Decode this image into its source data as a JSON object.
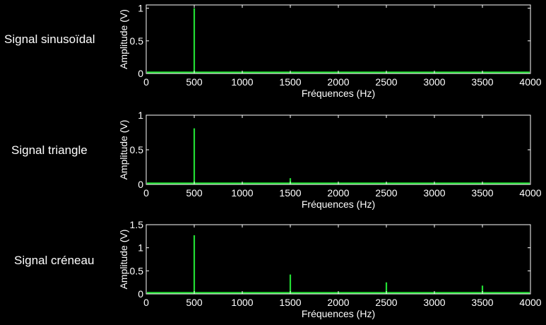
{
  "colors": {
    "background": "#000000",
    "axis": "#ffffff",
    "series": "#22dd33"
  },
  "chart_data": [
    {
      "type": "line",
      "label": "Signal sinusoïdal",
      "xlabel": "Fréquences (Hz)",
      "ylabel": "Amplitude (V)",
      "xlim": [
        0,
        4000
      ],
      "ylim": [
        0,
        1.05
      ],
      "xticks": [
        "0",
        "500",
        "1000",
        "1500",
        "2000",
        "2500",
        "3000",
        "3500",
        "4000"
      ],
      "yticks": [
        {
          "value": 0,
          "label": "0"
        },
        {
          "value": 0.5,
          "label": "0.5"
        },
        {
          "value": 1,
          "label": "1"
        }
      ],
      "grid": false,
      "peaks": [
        {
          "x": 500,
          "y": 1.0
        }
      ]
    },
    {
      "type": "line",
      "label": "Signal triangle",
      "xlabel": "Fréquences (Hz)",
      "ylabel": "Amplitude (V)",
      "xlim": [
        0,
        4000
      ],
      "ylim": [
        0,
        1
      ],
      "xticks": [
        "0",
        "500",
        "1000",
        "1500",
        "2000",
        "2500",
        "3000",
        "3500",
        "4000"
      ],
      "yticks": [
        {
          "value": 0,
          "label": "0"
        },
        {
          "value": 0.5,
          "label": "0.5"
        },
        {
          "value": 1,
          "label": "1"
        }
      ],
      "grid": false,
      "peaks": [
        {
          "x": 500,
          "y": 0.81
        },
        {
          "x": 1500,
          "y": 0.09
        },
        {
          "x": 2500,
          "y": 0.03
        },
        {
          "x": 3500,
          "y": 0.016
        }
      ]
    },
    {
      "type": "line",
      "label": "Signal créneau",
      "xlabel": "Fréquences (Hz)",
      "ylabel": "Amplitude (V)",
      "xlim": [
        0,
        4000
      ],
      "ylim": [
        0,
        1.5
      ],
      "xticks": [
        "0",
        "500",
        "1000",
        "1500",
        "2000",
        "2500",
        "3000",
        "3500",
        "4000"
      ],
      "yticks": [
        {
          "value": 0,
          "label": "0"
        },
        {
          "value": 0.5,
          "label": "0.5"
        },
        {
          "value": 1,
          "label": "1"
        },
        {
          "value": 1.5,
          "label": "1.5"
        }
      ],
      "grid": false,
      "peaks": [
        {
          "x": 500,
          "y": 1.27
        },
        {
          "x": 1500,
          "y": 0.42
        },
        {
          "x": 2500,
          "y": 0.25
        },
        {
          "x": 3500,
          "y": 0.18
        }
      ]
    }
  ]
}
